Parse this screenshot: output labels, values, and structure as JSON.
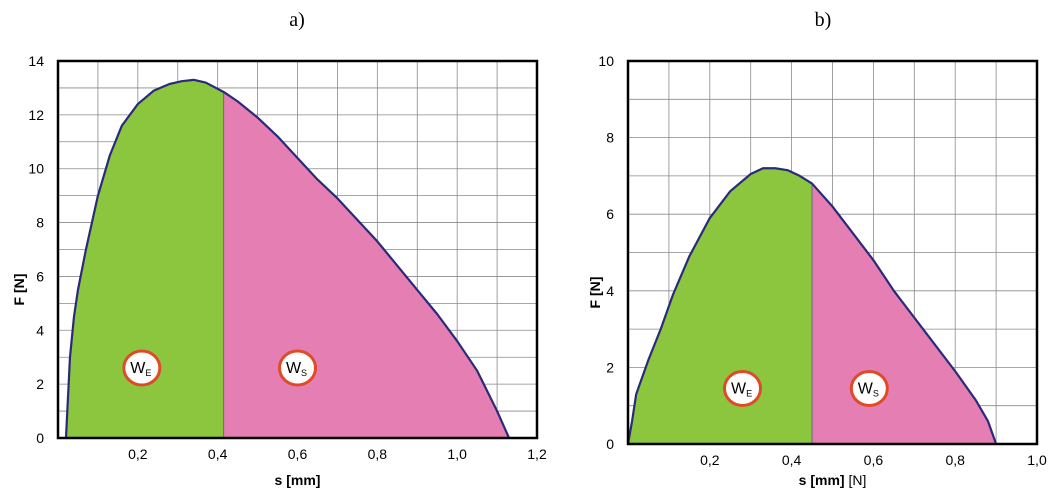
{
  "colors": {
    "elastic_fill": "#8cc63f",
    "plastic_fill": "#e57fb3",
    "curve": "#2a2a7a",
    "grid": "#8a8a8a",
    "frame": "#000000",
    "marker_border": "#e04a26"
  },
  "chart_data": [
    {
      "type": "area",
      "panel_label": "a)",
      "xlabel": "s [mm]",
      "xlabel_suffix": "",
      "ylabel": "F [N]",
      "xlim": [
        0.0,
        1.2
      ],
      "ylim": [
        0,
        14
      ],
      "x_ticks": [
        0.2,
        0.4,
        0.6,
        0.8,
        1.0,
        1.2
      ],
      "x_tick_labels": [
        "0,2",
        "0,4",
        "0,6",
        "0,8",
        "1,0",
        "1,2"
      ],
      "y_ticks": [
        0,
        2,
        4,
        6,
        8,
        10,
        12,
        14
      ],
      "y_tick_labels": [
        "0",
        "2",
        "4",
        "6",
        "8",
        "10",
        "12",
        "14"
      ],
      "x_grid_step": 0.1,
      "y_grid_step": 1,
      "grid": true,
      "split_x": 0.415,
      "curve": [
        [
          0.02,
          0
        ],
        [
          0.025,
          1.5
        ],
        [
          0.03,
          3
        ],
        [
          0.04,
          4.5
        ],
        [
          0.05,
          5.5
        ],
        [
          0.07,
          7
        ],
        [
          0.1,
          9
        ],
        [
          0.13,
          10.5
        ],
        [
          0.16,
          11.6
        ],
        [
          0.2,
          12.4
        ],
        [
          0.24,
          12.9
        ],
        [
          0.28,
          13.15
        ],
        [
          0.31,
          13.25
        ],
        [
          0.34,
          13.3
        ],
        [
          0.37,
          13.2
        ],
        [
          0.415,
          12.85
        ],
        [
          0.45,
          12.5
        ],
        [
          0.5,
          11.9
        ],
        [
          0.55,
          11.2
        ],
        [
          0.6,
          10.4
        ],
        [
          0.65,
          9.6
        ],
        [
          0.7,
          8.9
        ],
        [
          0.75,
          8.1
        ],
        [
          0.8,
          7.3
        ],
        [
          0.85,
          6.4
        ],
        [
          0.9,
          5.5
        ],
        [
          0.95,
          4.6
        ],
        [
          1.0,
          3.6
        ],
        [
          1.05,
          2.5
        ],
        [
          1.1,
          1.0
        ],
        [
          1.13,
          0
        ]
      ],
      "markers": [
        {
          "main": "W",
          "sub": "E",
          "x": 0.21,
          "y": 2.6
        },
        {
          "main": "W",
          "sub": "S",
          "x": 0.6,
          "y": 2.6
        }
      ]
    },
    {
      "type": "area",
      "panel_label": "b)",
      "xlabel": "s [mm]",
      "xlabel_suffix": " [N]",
      "ylabel": "F [N]",
      "xlim": [
        0.0,
        1.0
      ],
      "ylim": [
        0,
        10
      ],
      "x_ticks": [
        0.2,
        0.4,
        0.6,
        0.8,
        1.0
      ],
      "x_tick_labels": [
        "0,2",
        "0,4",
        "0,6",
        "0,8",
        "1,0"
      ],
      "y_ticks": [
        0,
        2,
        4,
        6,
        8,
        10
      ],
      "y_tick_labels": [
        "0",
        "2",
        "4",
        "6",
        "8",
        "10"
      ],
      "x_grid_step": 0.1,
      "y_grid_step": 1,
      "grid": true,
      "split_x": 0.45,
      "curve": [
        [
          0.0,
          0
        ],
        [
          0.01,
          0.6
        ],
        [
          0.02,
          1.3
        ],
        [
          0.05,
          2.2
        ],
        [
          0.08,
          3.0
        ],
        [
          0.11,
          3.9
        ],
        [
          0.15,
          4.9
        ],
        [
          0.2,
          5.9
        ],
        [
          0.25,
          6.6
        ],
        [
          0.3,
          7.05
        ],
        [
          0.33,
          7.2
        ],
        [
          0.36,
          7.2
        ],
        [
          0.39,
          7.15
        ],
        [
          0.42,
          7.0
        ],
        [
          0.45,
          6.8
        ],
        [
          0.5,
          6.2
        ],
        [
          0.55,
          5.5
        ],
        [
          0.6,
          4.8
        ],
        [
          0.65,
          4.0
        ],
        [
          0.7,
          3.3
        ],
        [
          0.75,
          2.6
        ],
        [
          0.8,
          1.9
        ],
        [
          0.85,
          1.15
        ],
        [
          0.88,
          0.6
        ],
        [
          0.9,
          0
        ]
      ],
      "markers": [
        {
          "main": "W",
          "sub": "E",
          "x": 0.28,
          "y": 1.45
        },
        {
          "main": "W",
          "sub": "S",
          "x": 0.59,
          "y": 1.45
        }
      ]
    }
  ]
}
